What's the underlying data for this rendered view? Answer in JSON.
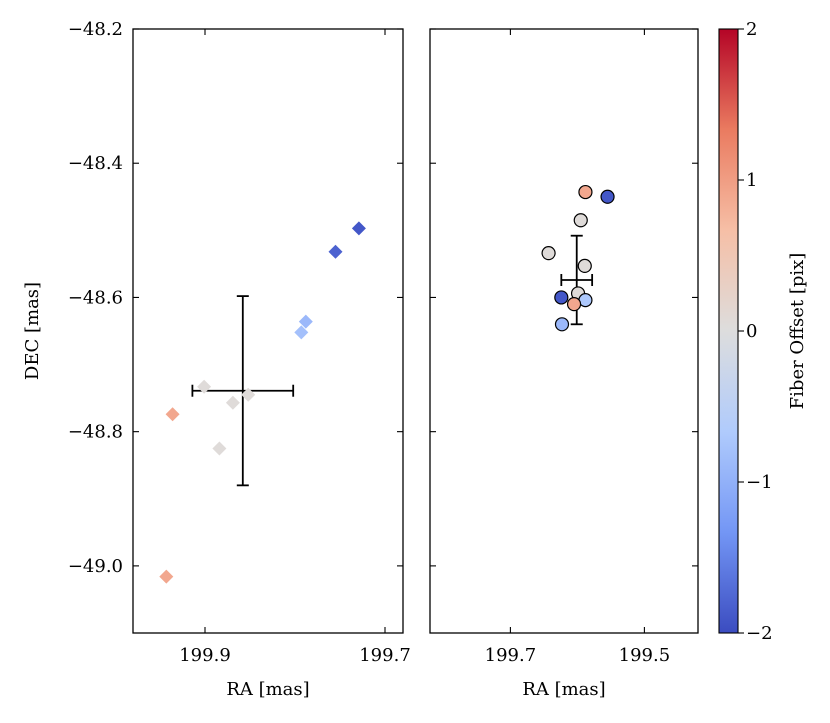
{
  "chart_data": {
    "type": "scatter",
    "shared_ylabel": "DEC [mas]",
    "ylim": [
      -49.1,
      -48.2
    ],
    "yticks": [
      -48.2,
      -48.4,
      -48.6,
      -48.8,
      -49.0
    ],
    "ytick_labels": [
      "−48.2",
      "−48.4",
      "−48.6",
      "−48.8",
      "−49.0"
    ],
    "panels": [
      {
        "xlabel": "RA [mas]",
        "xlim": [
          199.98,
          199.68
        ],
        "xticks": [
          199.9,
          199.7
        ],
        "xtick_labels": [
          "199.9",
          "199.7"
        ],
        "marker": "diamond",
        "points": [
          {
            "x": 199.729,
            "y": -48.497,
            "c": -1.9
          },
          {
            "x": 199.755,
            "y": -48.532,
            "c": -1.8
          },
          {
            "x": 199.788,
            "y": -48.636,
            "c": -0.9
          },
          {
            "x": 199.793,
            "y": -48.652,
            "c": -0.8
          },
          {
            "x": 199.901,
            "y": -48.733,
            "c": 0.05
          },
          {
            "x": 199.852,
            "y": -48.745,
            "c": 0.05
          },
          {
            "x": 199.869,
            "y": -48.757,
            "c": 0.05
          },
          {
            "x": 199.936,
            "y": -48.774,
            "c": 0.9
          },
          {
            "x": 199.884,
            "y": -48.825,
            "c": 0.05
          },
          {
            "x": 199.943,
            "y": -49.016,
            "c": 0.9
          }
        ],
        "errorbar": {
          "x": 199.858,
          "y": -48.739,
          "xerr": 0.056,
          "yerr": 0.141
        }
      },
      {
        "xlabel": "RA [mas]",
        "xlim": [
          199.82,
          199.42
        ],
        "xticks": [
          199.7,
          199.5
        ],
        "xtick_labels": [
          "199.7",
          "199.5"
        ],
        "marker": "circle",
        "points": [
          {
            "x": 199.588,
            "y": -48.443,
            "c": 0.9
          },
          {
            "x": 199.555,
            "y": -48.45,
            "c": -1.9
          },
          {
            "x": 199.595,
            "y": -48.485,
            "c": 0.05
          },
          {
            "x": 199.643,
            "y": -48.534,
            "c": 0.05
          },
          {
            "x": 199.589,
            "y": -48.553,
            "c": 0.05
          },
          {
            "x": 199.599,
            "y": -48.594,
            "c": 0.05
          },
          {
            "x": 199.624,
            "y": -48.6,
            "c": -1.9
          },
          {
            "x": 199.588,
            "y": -48.604,
            "c": -0.7
          },
          {
            "x": 199.605,
            "y": -48.61,
            "c": 0.9
          },
          {
            "x": 199.623,
            "y": -48.64,
            "c": -0.9
          }
        ],
        "errorbar": {
          "x": 199.601,
          "y": -48.574,
          "xerr": 0.023,
          "yerr": 0.066
        }
      }
    ],
    "colorbar": {
      "label": "Fiber Offset [pix]",
      "range": [
        -2,
        2
      ],
      "ticks": [
        2,
        1,
        0,
        -1,
        -2
      ],
      "tick_labels": [
        "2",
        "1",
        "0",
        "−1",
        "−2"
      ],
      "colormap": [
        "#3b4cc0",
        "#7396f5",
        "#b0cbfc",
        "#dddddd",
        "#f6bfa6",
        "#ea7b60",
        "#b40426"
      ]
    }
  }
}
